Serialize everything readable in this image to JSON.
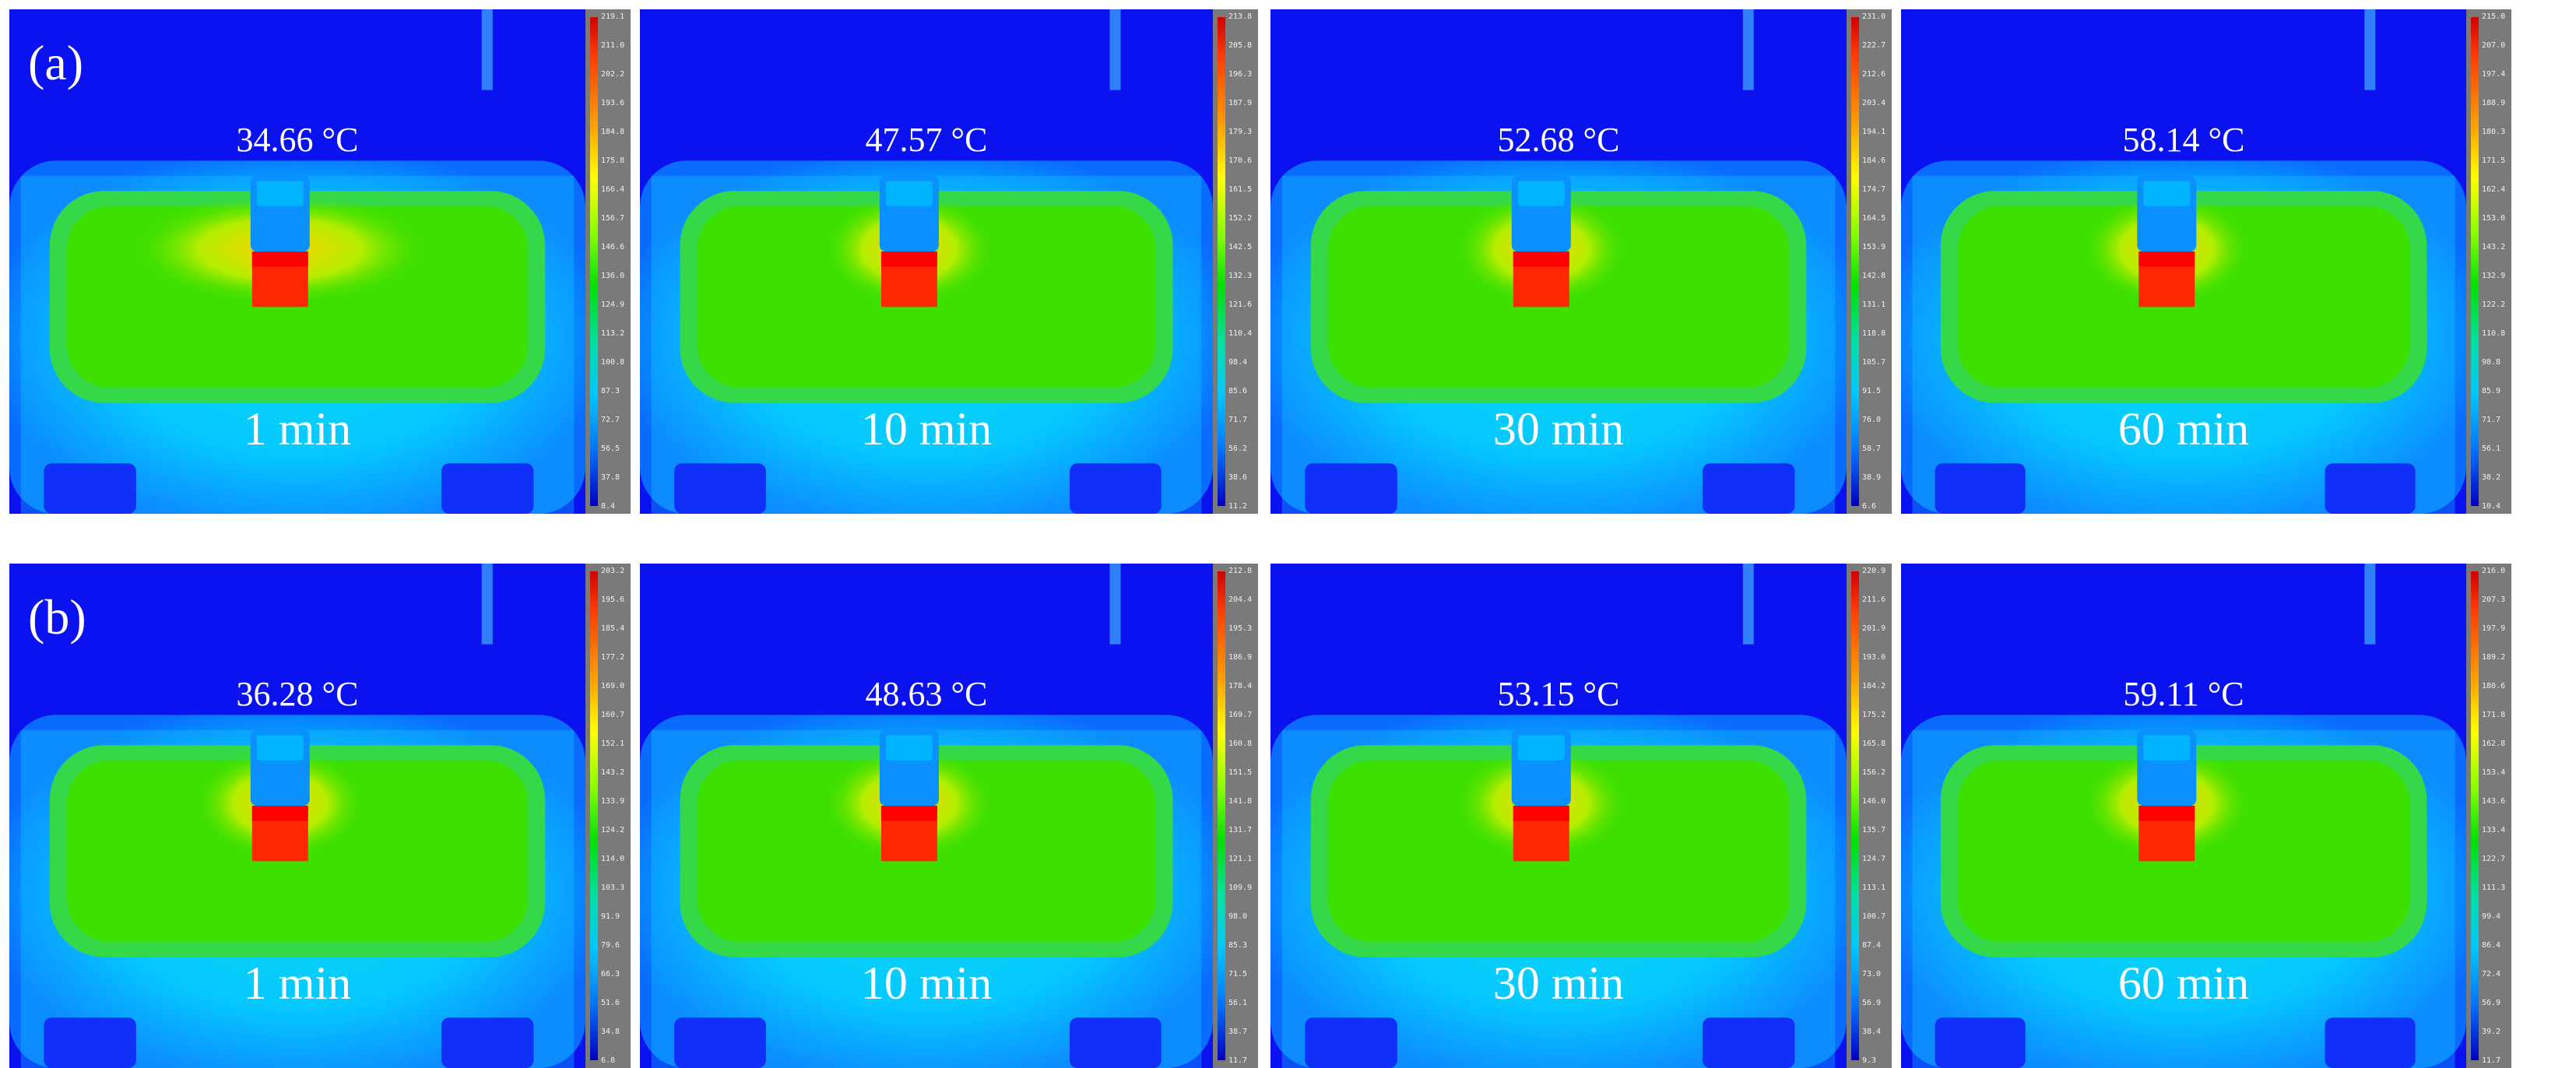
{
  "rows": [
    {
      "label": "(a)",
      "panels": [
        {
          "temperature": "34.66 °C",
          "time": "1 min",
          "scale": [
            "219.1",
            "211.0",
            "202.2",
            "193.6",
            "184.8",
            "175.8",
            "166.4",
            "156.7",
            "146.6",
            "136.0",
            "124.9",
            "113.2",
            "100.8",
            "87.3",
            "72.7",
            "56.5",
            "37.8",
            "8.4"
          ]
        },
        {
          "temperature": "47.57 °C",
          "time": "10 min",
          "scale": [
            "213.8",
            "205.8",
            "196.3",
            "187.9",
            "179.3",
            "170.6",
            "161.5",
            "152.2",
            "142.5",
            "132.3",
            "121.6",
            "110.4",
            "98.4",
            "85.6",
            "71.7",
            "56.2",
            "38.6",
            "11.2"
          ]
        },
        {
          "temperature": "52.68 °C",
          "time": "30 min",
          "scale": [
            "231.0",
            "222.7",
            "212.6",
            "203.4",
            "194.1",
            "184.6",
            "174.7",
            "164.5",
            "153.9",
            "142.8",
            "131.1",
            "118.8",
            "105.7",
            "91.5",
            "76.0",
            "58.7",
            "38.9",
            "6.6"
          ]
        },
        {
          "temperature": "58.14 °C",
          "time": "60 min",
          "scale": [
            "215.0",
            "207.0",
            "197.4",
            "188.9",
            "180.3",
            "171.5",
            "162.4",
            "153.0",
            "143.2",
            "132.9",
            "122.2",
            "110.8",
            "98.8",
            "85.9",
            "71.7",
            "56.1",
            "38.2",
            "10.4"
          ]
        }
      ]
    },
    {
      "label": "(b)",
      "panels": [
        {
          "temperature": "36.28 °C",
          "time": "1 min",
          "scale": [
            "203.2",
            "195.6",
            "185.4",
            "177.2",
            "169.0",
            "160.7",
            "152.1",
            "143.2",
            "133.9",
            "124.2",
            "114.0",
            "103.3",
            "91.9",
            "79.6",
            "66.3",
            "51.6",
            "34.8",
            "6.8"
          ]
        },
        {
          "temperature": "48.63 °C",
          "time": "10 min",
          "scale": [
            "212.8",
            "204.4",
            "195.3",
            "186.9",
            "178.4",
            "169.7",
            "160.8",
            "151.5",
            "141.8",
            "131.7",
            "121.1",
            "109.9",
            "98.0",
            "85.3",
            "71.5",
            "56.1",
            "38.7",
            "11.7"
          ]
        },
        {
          "temperature": "53.15 °C",
          "time": "30  min",
          "scale": [
            "220.9",
            "211.6",
            "201.9",
            "193.0",
            "184.2",
            "175.2",
            "165.8",
            "156.2",
            "146.0",
            "135.7",
            "124.7",
            "113.1",
            "100.7",
            "87.4",
            "73.0",
            "56.9",
            "38.4",
            "9.3"
          ]
        },
        {
          "temperature": "59.11 °C",
          "time": "60 min",
          "scale": [
            "216.0",
            "207.3",
            "197.9",
            "189.2",
            "180.6",
            "171.8",
            "162.8",
            "153.4",
            "143.6",
            "133.4",
            "122.7",
            "111.3",
            "99.4",
            "86.4",
            "72.4",
            "56.9",
            "39.2",
            "11.7"
          ]
        }
      ]
    }
  ],
  "colors": {
    "background": "#0a12f0",
    "text": "#ffffff",
    "scalebar": "#7a7a7a"
  }
}
